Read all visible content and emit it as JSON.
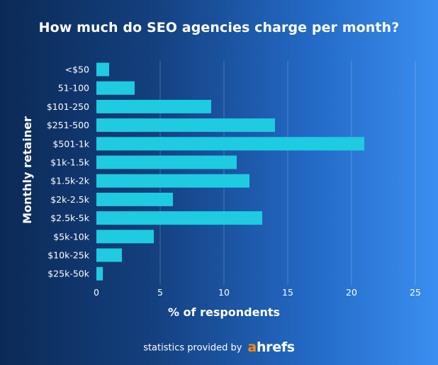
{
  "chart_data": {
    "type": "bar",
    "orientation": "horizontal",
    "title": "How much do SEO agencies charge per month?",
    "xlabel": "% of respondents",
    "ylabel": "Monthly retainer",
    "categories": [
      "<$50",
      "51-100",
      "$101-250",
      "$251-500",
      "$501-1k",
      "$1k-1.5k",
      "$1.5k-2k",
      "$2k-2.5k",
      "$2.5k-5k",
      "$5k-10k",
      "$10k-25k",
      "$25k-50k"
    ],
    "values": [
      1,
      3,
      9,
      14,
      21,
      11,
      12,
      6,
      13,
      4.5,
      2,
      0.5
    ],
    "xlim": [
      0,
      25
    ],
    "xticks": [
      "0",
      "5",
      "10",
      "15",
      "20",
      "25"
    ],
    "grid": "vertical",
    "bar_color": "#1ecbe1"
  },
  "footer": {
    "credit_text": "statistics provided by",
    "brand": "ahrefs",
    "brand_accent": "#ff8800"
  }
}
